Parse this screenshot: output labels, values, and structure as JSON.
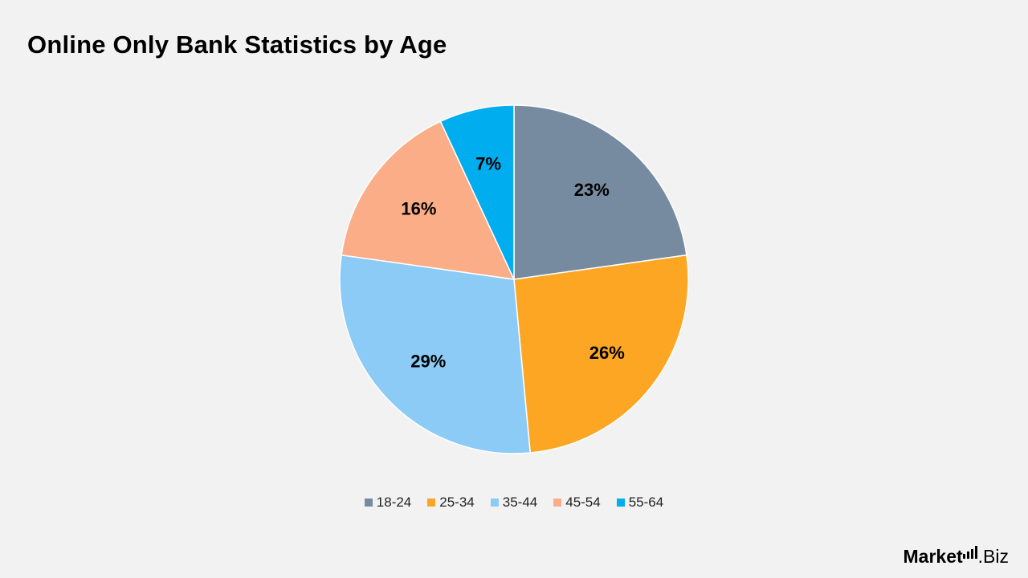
{
  "chart_data": {
    "type": "pie",
    "title": "Online Only Bank Statistics by Age",
    "categories": [
      "18-24",
      "25-34",
      "35-44",
      "45-54",
      "55-64"
    ],
    "values": [
      23,
      26,
      29,
      16,
      7
    ],
    "labels": [
      "23%",
      "26%",
      "29%",
      "16%",
      "7%"
    ],
    "colors": [
      "#778ba0",
      "#fca624",
      "#8bcbf6",
      "#fbad88",
      "#00adef"
    ],
    "start_angle_deg": 0,
    "direction": "clockwise",
    "legend": "bottom"
  },
  "brand": {
    "name_strong": "Market",
    "name_light": ".Biz",
    "icon": "signal-bars-icon"
  }
}
